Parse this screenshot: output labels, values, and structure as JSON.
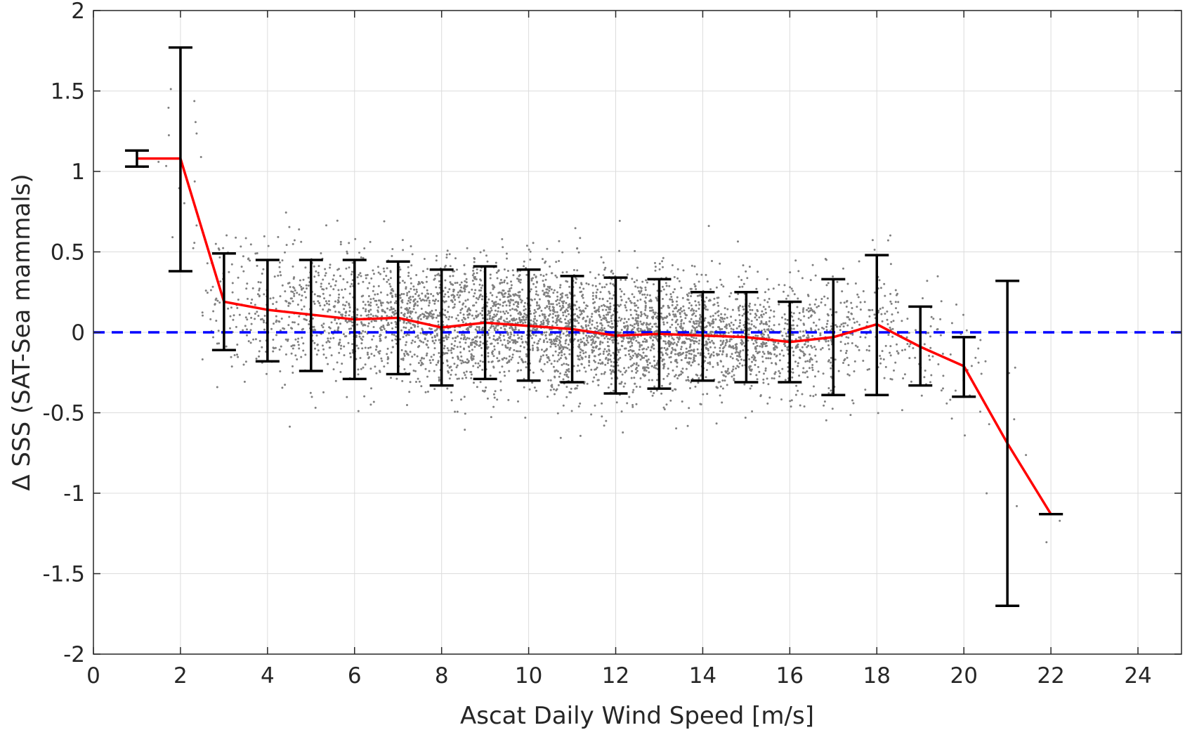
{
  "chart_data": {
    "type": "scatter",
    "title": "",
    "xlabel": "Ascat Daily Wind Speed [m/s]",
    "ylabel": "Δ SSS (SAT-Sea mammals)",
    "xlim": [
      0,
      25
    ],
    "ylim": [
      -2,
      2
    ],
    "xticks": [
      0,
      2,
      4,
      6,
      8,
      10,
      12,
      14,
      16,
      18,
      20,
      22,
      24
    ],
    "yticks": [
      -2,
      -1.5,
      -1,
      -0.5,
      0,
      0.5,
      1,
      1.5,
      2
    ],
    "grid": true,
    "legend": "none",
    "colors": {
      "scatter": "#808080",
      "mean_line": "#ff0000",
      "error_bars": "#000000",
      "zero_line": "#0000ff",
      "grid": "#dcdcdc",
      "axes": "#262626"
    },
    "reference_line": {
      "y": 0,
      "style": "dashed"
    },
    "binned_mean": {
      "x": [
        1,
        2,
        3,
        4,
        5,
        6,
        7,
        8,
        9,
        10,
        11,
        12,
        13,
        14,
        15,
        16,
        17,
        18,
        19,
        20,
        21,
        22
      ],
      "y": [
        1.08,
        1.08,
        0.19,
        0.14,
        0.11,
        0.08,
        0.09,
        0.03,
        0.06,
        0.04,
        0.02,
        -0.02,
        -0.01,
        -0.02,
        -0.03,
        -0.06,
        -0.03,
        0.05,
        -0.09,
        -0.21,
        -0.69,
        -1.13
      ]
    },
    "error_bars": {
      "x": [
        1,
        2,
        3,
        4,
        5,
        6,
        7,
        8,
        9,
        10,
        11,
        12,
        13,
        14,
        15,
        16,
        17,
        18,
        19,
        20,
        21,
        22
      ],
      "lower": [
        1.03,
        0.38,
        -0.11,
        -0.18,
        -0.24,
        -0.29,
        -0.26,
        -0.33,
        -0.29,
        -0.3,
        -0.31,
        -0.38,
        -0.35,
        -0.3,
        -0.31,
        -0.31,
        -0.39,
        -0.39,
        -0.33,
        -0.4,
        -1.7,
        -1.13
      ],
      "upper": [
        1.13,
        1.77,
        0.49,
        0.45,
        0.45,
        0.45,
        0.44,
        0.39,
        0.41,
        0.39,
        0.35,
        0.34,
        0.33,
        0.25,
        0.25,
        0.19,
        0.33,
        0.48,
        0.16,
        -0.03,
        0.32,
        -1.13
      ]
    },
    "scatter_distribution": {
      "x_range": [
        1,
        22
      ],
      "approx_points": 5000,
      "spread_sd": [
        0.05,
        0.35,
        0.22,
        0.21,
        0.2,
        0.2,
        0.19,
        0.2,
        0.2,
        0.19,
        0.2,
        0.2,
        0.19,
        0.18,
        0.18,
        0.17,
        0.19,
        0.2,
        0.16,
        0.17,
        0.3,
        0.1
      ],
      "density": [
        2,
        15,
        70,
        120,
        180,
        240,
        300,
        340,
        400,
        420,
        430,
        420,
        400,
        380,
        300,
        240,
        160,
        100,
        50,
        25,
        8,
        2
      ]
    }
  }
}
